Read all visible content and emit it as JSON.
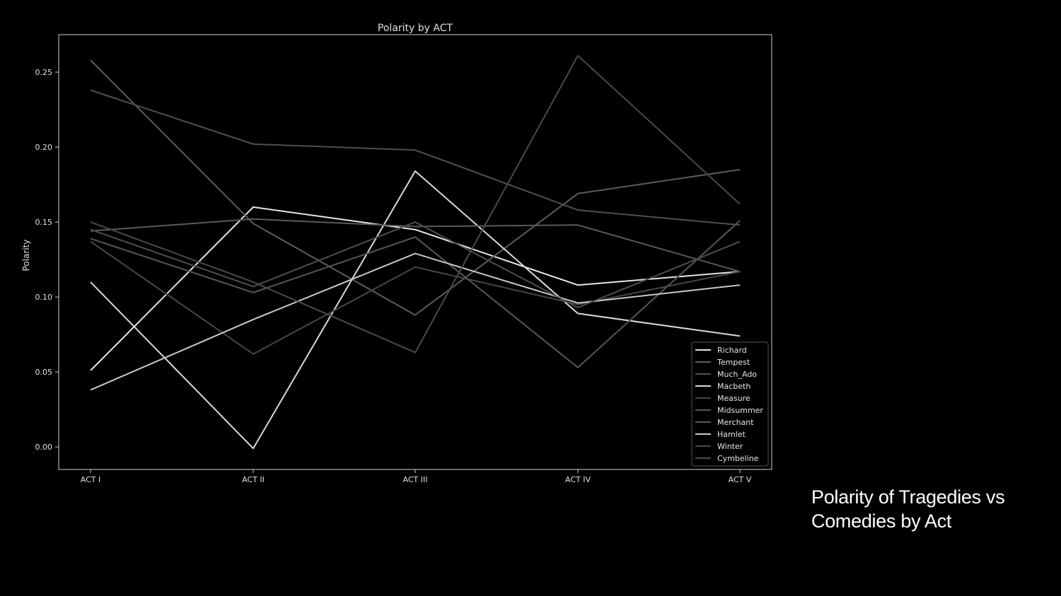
{
  "chart_data": {
    "type": "line",
    "title": "Polarity by ACT",
    "xlabel": "",
    "ylabel": "Polarity",
    "categories": [
      "ACT I",
      "ACT II",
      "ACT III",
      "ACT IV",
      "ACT V"
    ],
    "ylim": [
      -0.015,
      0.275
    ],
    "yticks": [
      0.0,
      0.05,
      0.1,
      0.15,
      0.2,
      0.25
    ],
    "ytick_labels": [
      "0.00",
      "0.05",
      "0.10",
      "0.15",
      "0.20",
      "0.25"
    ],
    "grid": false,
    "legend_position": "lower-right",
    "series": [
      {
        "name": "Richard",
        "color": "#e6e6e6",
        "values": [
          0.051,
          0.16,
          0.145,
          0.108,
          0.117
        ]
      },
      {
        "name": "Tempest",
        "color": "#5c5c5c",
        "values": [
          0.258,
          0.149,
          0.088,
          0.169,
          0.185
        ]
      },
      {
        "name": "Much_Ado",
        "color": "#505050",
        "values": [
          0.238,
          0.202,
          0.198,
          0.158,
          0.148
        ]
      },
      {
        "name": "Macbeth",
        "color": "#d9d9d9",
        "values": [
          0.11,
          -0.001,
          0.184,
          0.089,
          0.074
        ]
      },
      {
        "name": "Measure",
        "color": "#474747",
        "values": [
          0.137,
          0.062,
          0.12,
          0.095,
          0.117
        ]
      },
      {
        "name": "Midsummer",
        "color": "#575757",
        "values": [
          0.139,
          0.103,
          0.14,
          0.053,
          0.151
        ]
      },
      {
        "name": "Merchant",
        "color": "#5a5a5a",
        "values": [
          0.144,
          0.152,
          0.147,
          0.148,
          0.117
        ]
      },
      {
        "name": "Hamlet",
        "color": "#c8c8c8",
        "values": [
          0.038,
          0.085,
          0.129,
          0.096,
          0.108
        ]
      },
      {
        "name": "Winter",
        "color": "#4a4a4a",
        "values": [
          0.15,
          0.11,
          0.063,
          0.261,
          0.162
        ]
      },
      {
        "name": "Cymbeline",
        "color": "#4e4e4e",
        "values": [
          0.145,
          0.107,
          0.15,
          0.093,
          0.137
        ]
      }
    ]
  },
  "caption": {
    "line1": "Polarity of Tragedies vs",
    "line2": "Comedies by Act"
  }
}
